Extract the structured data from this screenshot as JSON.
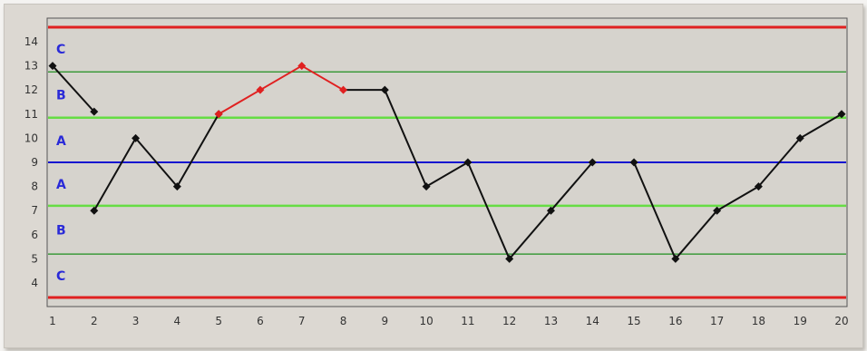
{
  "chart_data": {
    "type": "line",
    "title": "",
    "xlabel": "",
    "ylabel": "",
    "x": [
      1,
      2,
      3,
      4,
      5,
      6,
      7,
      8,
      9,
      10,
      11,
      12,
      13,
      14,
      15,
      16,
      17,
      18,
      19,
      20
    ],
    "y_ticks": [
      4,
      5,
      6,
      7,
      8,
      9,
      10,
      11,
      12,
      13,
      14
    ],
    "ylim": [
      3.4,
      14.6
    ],
    "grid": false,
    "series": [
      {
        "values": [
          13,
          11.1,
          null,
          null,
          null,
          null,
          null,
          null,
          null,
          null,
          null,
          null,
          null,
          null,
          null,
          null,
          null,
          null,
          null,
          null
        ],
        "color": "#111111"
      },
      {
        "values": [
          null,
          7,
          10,
          8,
          11,
          null,
          null,
          null,
          null,
          null,
          null,
          null,
          null,
          null,
          null,
          null,
          null,
          null,
          null,
          null
        ],
        "color": "#111111"
      },
      {
        "values": [
          null,
          null,
          null,
          null,
          11,
          12,
          13,
          12,
          null,
          null,
          null,
          null,
          null,
          null,
          null,
          null,
          null,
          null,
          null,
          null
        ],
        "color": "#e02020"
      },
      {
        "values": [
          null,
          null,
          null,
          null,
          null,
          null,
          null,
          12,
          12,
          8,
          9,
          5,
          7,
          9,
          null,
          null,
          null,
          null,
          null,
          null
        ],
        "color": "#111111"
      },
      {
        "values": [
          null,
          null,
          null,
          null,
          null,
          null,
          null,
          null,
          null,
          null,
          null,
          null,
          null,
          null,
          9,
          5,
          7,
          8,
          10,
          11
        ],
        "color": "#111111"
      }
    ],
    "control_lines": [
      {
        "value": 14.6,
        "role": "upper control limit",
        "color": "#e02020"
      },
      {
        "value": 12.75,
        "role": "zone C/B boundary",
        "color": "#1f8f1f"
      },
      {
        "value": 10.85,
        "role": "zone B/A boundary",
        "color": "#66dd44"
      },
      {
        "value": 9,
        "role": "center line",
        "color": "#1515d0"
      },
      {
        "value": 7.2,
        "role": "zone A/B boundary",
        "color": "#66dd44"
      },
      {
        "value": 5.2,
        "role": "zone B/C boundary",
        "color": "#1f8f1f"
      },
      {
        "value": 3.4,
        "role": "lower control limit",
        "color": "#e02020"
      }
    ],
    "zone_labels": [
      {
        "text": "C",
        "y": 13.7
      },
      {
        "text": "B",
        "y": 11.8
      },
      {
        "text": "A",
        "y": 9.9
      },
      {
        "text": "A",
        "y": 8.1
      },
      {
        "text": "B",
        "y": 6.2
      },
      {
        "text": "C",
        "y": 4.3
      }
    ]
  }
}
